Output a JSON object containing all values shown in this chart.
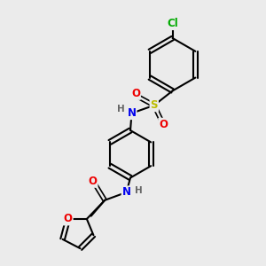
{
  "bg_color": "#ebebeb",
  "bond_color": "#000000",
  "atom_colors": {
    "N": "#0000ee",
    "O": "#ee0000",
    "S": "#bbbb00",
    "Cl": "#00aa00",
    "H": "#666666",
    "C": "#000000"
  },
  "bond_width": 1.5,
  "font_size": 8.5
}
